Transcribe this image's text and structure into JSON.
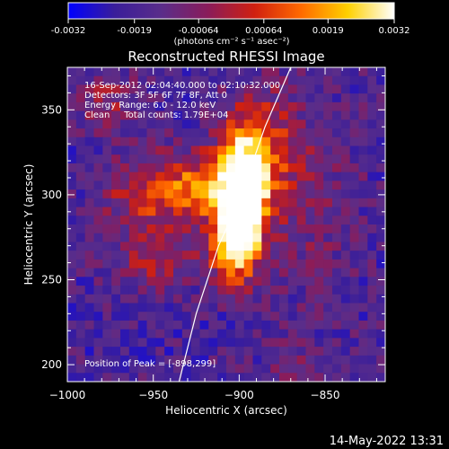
{
  "colorbar": {
    "ticks": [
      "-0.0032",
      "-0.0019",
      "-0.00064",
      "0.00064",
      "0.0019",
      "0.0032"
    ],
    "min": -0.0032,
    "max": 0.0032,
    "unit_label": "(photons cm⁻² s⁻¹ asec⁻²)",
    "stops": [
      "#0000ff",
      "#3a1e9a",
      "#5a2d8a",
      "#8a1c5a",
      "#d02010",
      "#ff6a00",
      "#ffd000",
      "#ffffff"
    ]
  },
  "chart_data": {
    "type": "heatmap",
    "title": "Reconstructed RHESSI Image",
    "xlabel": "Heliocentric X (arcsec)",
    "ylabel": "Heliocentric Y (arcsec)",
    "xlim": [
      -1000,
      -815
    ],
    "ylim": [
      190,
      375
    ],
    "x_ticks": [
      -1000,
      -950,
      -900,
      -850
    ],
    "y_ticks": [
      200,
      250,
      300,
      350
    ],
    "annotations": [
      "16-Sep-2012 02:04:40.000 to 02:10:32.000",
      "Detectors: 3F 5F 6F 7F 8F, Att 0",
      "Energy Range: 6.0 - 12.0 keV",
      "Clean     Total counts: 1.79E+04"
    ],
    "peak_label": "Position of Peak = [-898,299]",
    "peak": [
      -898,
      299
    ],
    "limb": [
      [
        -935,
        190
      ],
      [
        -925,
        230
      ],
      [
        -912,
        270
      ],
      [
        -899,
        299
      ],
      [
        -885,
        340
      ],
      [
        -870,
        375
      ]
    ],
    "sources": [
      {
        "x": -898,
        "y": 299,
        "sx": 9,
        "sy": 22,
        "amp": 1.0
      },
      {
        "x": -903,
        "y": 272,
        "sx": 10,
        "sy": 16,
        "amp": 0.9
      },
      {
        "x": -918,
        "y": 305,
        "sx": 22,
        "sy": 14,
        "amp": 0.55
      },
      {
        "x": -955,
        "y": 300,
        "sx": 18,
        "sy": 16,
        "amp": 0.35
      },
      {
        "x": -890,
        "y": 330,
        "sx": 14,
        "sy": 22,
        "amp": 0.5
      },
      {
        "x": -950,
        "y": 260,
        "sx": 18,
        "sy": 12,
        "amp": 0.3
      },
      {
        "x": -860,
        "y": 300,
        "sx": 20,
        "sy": 40,
        "amp": 0.2
      },
      {
        "x": -975,
        "y": 355,
        "sx": 14,
        "sy": 12,
        "amp": 0.28
      },
      {
        "x": -860,
        "y": 200,
        "sx": 18,
        "sy": 10,
        "amp": 0.15
      }
    ]
  },
  "timestamp": "14-May-2022 13:31"
}
